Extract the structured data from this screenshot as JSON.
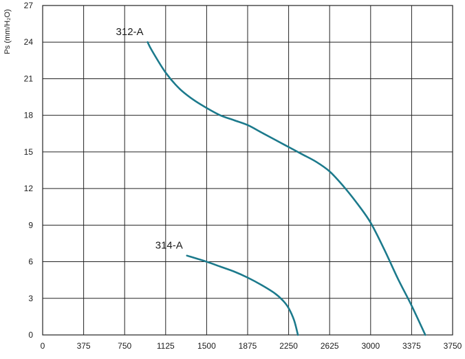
{
  "chart_data": {
    "type": "line",
    "title": "",
    "xlabel": "",
    "ylabel": "Ps (mm/H₂O)",
    "xlim": [
      0,
      3750
    ],
    "ylim": [
      0,
      27
    ],
    "x_ticks": [
      0,
      375,
      750,
      1125,
      1500,
      1875,
      2250,
      2625,
      3000,
      3375,
      3750
    ],
    "y_ticks": [
      0,
      3,
      6,
      9,
      12,
      15,
      18,
      21,
      24,
      27
    ],
    "x_tick_labels": [
      "0",
      "375",
      "750",
      "1125",
      "1500",
      "1875",
      "2250",
      "2625",
      "3000",
      "3375",
      "3750"
    ],
    "y_tick_labels": [
      "0",
      "3",
      "6",
      "9",
      "12",
      "15",
      "18",
      "21",
      "24",
      "27"
    ],
    "grid": true,
    "legend": "none",
    "series": [
      {
        "name": "312-A",
        "color": "#1c7a8c",
        "points": [
          [
            960,
            24
          ],
          [
            1000,
            23.3
          ],
          [
            1125,
            21.5
          ],
          [
            1250,
            20.2
          ],
          [
            1375,
            19.3
          ],
          [
            1500,
            18.6
          ],
          [
            1625,
            18.0
          ],
          [
            1750,
            17.6
          ],
          [
            1875,
            17.2
          ],
          [
            2000,
            16.6
          ],
          [
            2125,
            16.0
          ],
          [
            2250,
            15.4
          ],
          [
            2375,
            14.8
          ],
          [
            2500,
            14.2
          ],
          [
            2625,
            13.4
          ],
          [
            2750,
            12.2
          ],
          [
            2875,
            10.8
          ],
          [
            3000,
            9.2
          ],
          [
            3125,
            7.0
          ],
          [
            3250,
            4.6
          ],
          [
            3375,
            2.4
          ],
          [
            3500,
            0
          ]
        ]
      },
      {
        "name": "314-A",
        "color": "#1c7a8c",
        "points": [
          [
            1320,
            6.5
          ],
          [
            1500,
            6.0
          ],
          [
            1625,
            5.6
          ],
          [
            1750,
            5.2
          ],
          [
            1875,
            4.7
          ],
          [
            2000,
            4.1
          ],
          [
            2125,
            3.4
          ],
          [
            2200,
            2.8
          ],
          [
            2250,
            2.2
          ],
          [
            2300,
            1.2
          ],
          [
            2335,
            0
          ]
        ]
      }
    ]
  }
}
